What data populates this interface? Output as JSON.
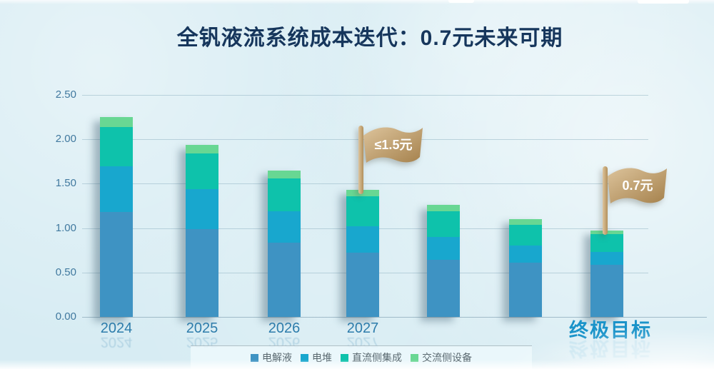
{
  "title": "全钒液流系统成本迭代：0.7元未来可期",
  "colors": {
    "background": "#d7ecf3",
    "title_text": "#16365c",
    "axis_label": "#41799f",
    "category_label": "#2d7cab",
    "goal_label": "#1a93c9",
    "gridline": "#a9c9d4",
    "flag_gold_light": "#dcc39b",
    "flag_gold_dark": "#a5814c",
    "flag_pole_light": "#dec49c",
    "flag_pole_dark": "#b2905c",
    "flag_text": "#ffffff",
    "legend_text": "#59686f"
  },
  "chart_data": {
    "type": "bar",
    "stacked": true,
    "title": "全钒液流系统成本迭代：0.7元未来可期",
    "categories": [
      "2024",
      "2025",
      "2026",
      "2027",
      "",
      "",
      "终极目标"
    ],
    "series": [
      {
        "name": "电解液",
        "color": "#3e93c3",
        "values": [
          1.18,
          0.99,
          0.84,
          0.72,
          0.64,
          0.61,
          0.59
        ]
      },
      {
        "name": "电堆",
        "color": "#18a7ce",
        "values": [
          0.52,
          0.45,
          0.35,
          0.3,
          0.26,
          0.19,
          0.14
        ]
      },
      {
        "name": "直流侧集成",
        "color": "#0ec2ab",
        "values": [
          0.44,
          0.4,
          0.37,
          0.34,
          0.29,
          0.24,
          0.2
        ]
      },
      {
        "name": "交流侧设备",
        "color": "#68d793",
        "values": [
          0.11,
          0.1,
          0.09,
          0.07,
          0.07,
          0.06,
          0.04
        ]
      }
    ],
    "totals": [
      2.25,
      1.94,
      1.65,
      1.43,
      1.26,
      1.1,
      0.97
    ],
    "xlabel": "",
    "ylabel": "",
    "ylim": [
      0,
      2.5
    ],
    "yticks": [
      {
        "label": "2.50",
        "value": 2.5
      },
      {
        "label": "2.00",
        "value": 2.0
      },
      {
        "label": "1.50",
        "value": 1.5
      },
      {
        "label": "1.00",
        "value": 1.0
      },
      {
        "label": "0.50",
        "value": 0.5
      },
      {
        "label": "0.00",
        "value": 0.0
      }
    ],
    "grid": true,
    "legend_position": "bottom",
    "annotations": [
      {
        "text": "≤1.5元",
        "category_index": 3,
        "style": "gold-flag"
      },
      {
        "text": "0.7元",
        "category_index": 6,
        "style": "gold-flag"
      }
    ]
  }
}
